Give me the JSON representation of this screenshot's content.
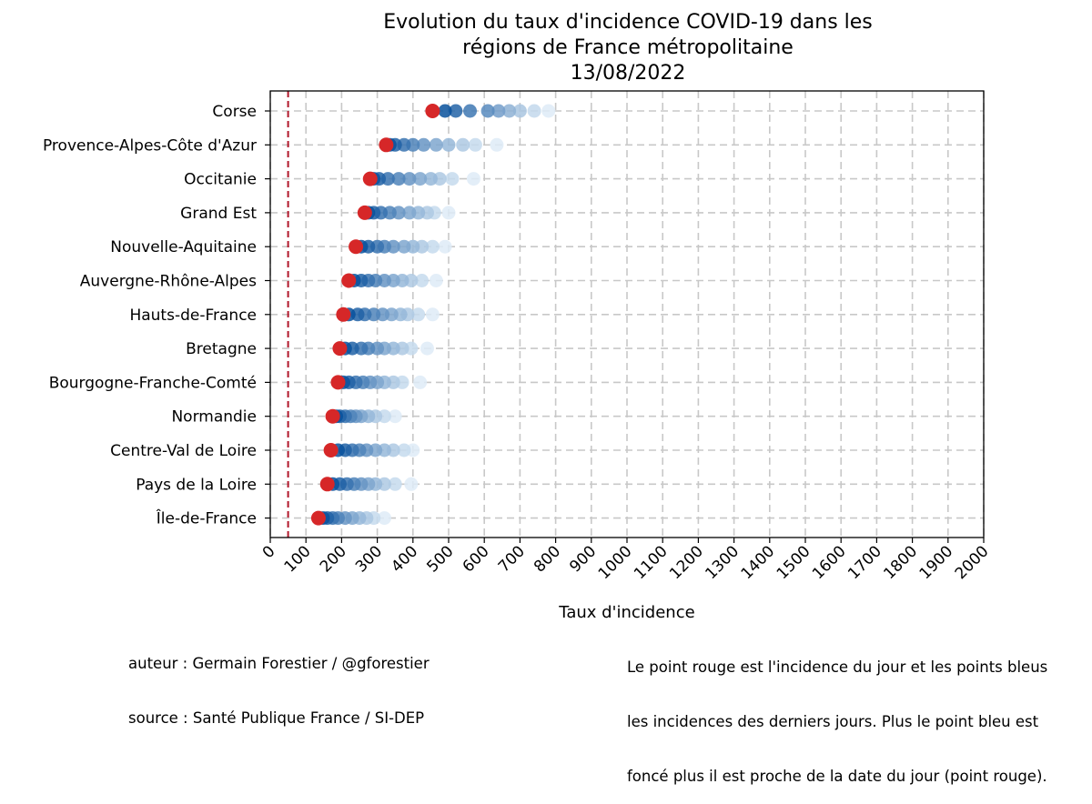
{
  "chart_data": {
    "type": "scatter",
    "title_lines": [
      "Evolution du taux d'incidence COVID-19 dans les",
      "régions de France métropolitaine",
      "13/08/2022"
    ],
    "xlabel": "Taux d'incidence",
    "xlim": [
      0,
      2000
    ],
    "xticks": [
      0,
      100,
      200,
      300,
      400,
      500,
      600,
      700,
      800,
      900,
      1000,
      1100,
      1200,
      1300,
      1400,
      1500,
      1600,
      1700,
      1800,
      1900,
      2000
    ],
    "grid": true,
    "reference_line_x": 50,
    "colors": {
      "today": "#d62728",
      "history_dark": "#08519c",
      "history_light": "#deebf7",
      "reference_line": "#b2182b"
    },
    "regions": [
      {
        "name": "Corse",
        "today": 455,
        "history": [
          780,
          740,
          700,
          670,
          640,
          610,
          560,
          520,
          490
        ]
      },
      {
        "name": "Provence-Alpes-Côte d'Azur",
        "today": 325,
        "history": [
          635,
          575,
          540,
          500,
          465,
          430,
          400,
          375,
          350,
          335
        ]
      },
      {
        "name": "Occitanie",
        "today": 280,
        "history": [
          570,
          510,
          475,
          450,
          420,
          390,
          360,
          330,
          305,
          290
        ]
      },
      {
        "name": "Grand Est",
        "today": 265,
        "history": [
          500,
          460,
          440,
          415,
          390,
          360,
          335,
          310,
          290,
          275
        ]
      },
      {
        "name": "Nouvelle-Aquitaine",
        "today": 240,
        "history": [
          490,
          455,
          425,
          400,
          375,
          345,
          320,
          300,
          275,
          255
        ]
      },
      {
        "name": "Auvergne-Rhône-Alpes",
        "today": 220,
        "history": [
          465,
          425,
          395,
          370,
          345,
          320,
          295,
          275,
          255,
          235
        ]
      },
      {
        "name": "Hauts-de-France",
        "today": 205,
        "history": [
          455,
          415,
          385,
          365,
          340,
          315,
          290,
          265,
          245,
          220
        ]
      },
      {
        "name": "Bretagne",
        "today": 195,
        "history": [
          440,
          395,
          370,
          345,
          320,
          300,
          275,
          255,
          230,
          210
        ]
      },
      {
        "name": "Bourgogne-Franche-Comté",
        "today": 190,
        "history": [
          420,
          370,
          345,
          320,
          300,
          280,
          260,
          240,
          220,
          205
        ]
      },
      {
        "name": "Normandie",
        "today": 175,
        "history": [
          350,
          320,
          295,
          275,
          255,
          240,
          225,
          210,
          195,
          185
        ]
      },
      {
        "name": "Centre-Val de Loire",
        "today": 170,
        "history": [
          400,
          375,
          345,
          320,
          295,
          270,
          250,
          230,
          210,
          190
        ]
      },
      {
        "name": "Pays de la Loire",
        "today": 160,
        "history": [
          395,
          350,
          320,
          295,
          275,
          255,
          235,
          215,
          195,
          175
        ]
      },
      {
        "name": "Île-de-France",
        "today": 135,
        "history": [
          320,
          290,
          270,
          250,
          230,
          210,
          190,
          175,
          160,
          148
        ]
      }
    ]
  },
  "footer": {
    "author_lines": [
      "auteur : Germain Forestier / @gforestier",
      "source : Santé Publique France / SI-DEP"
    ],
    "note_lines": [
      "Le point rouge est l'incidence du jour et les points bleus",
      "les incidences des derniers jours. Plus le point bleu est",
      "foncé plus il est proche de la date du jour (point rouge)."
    ]
  }
}
